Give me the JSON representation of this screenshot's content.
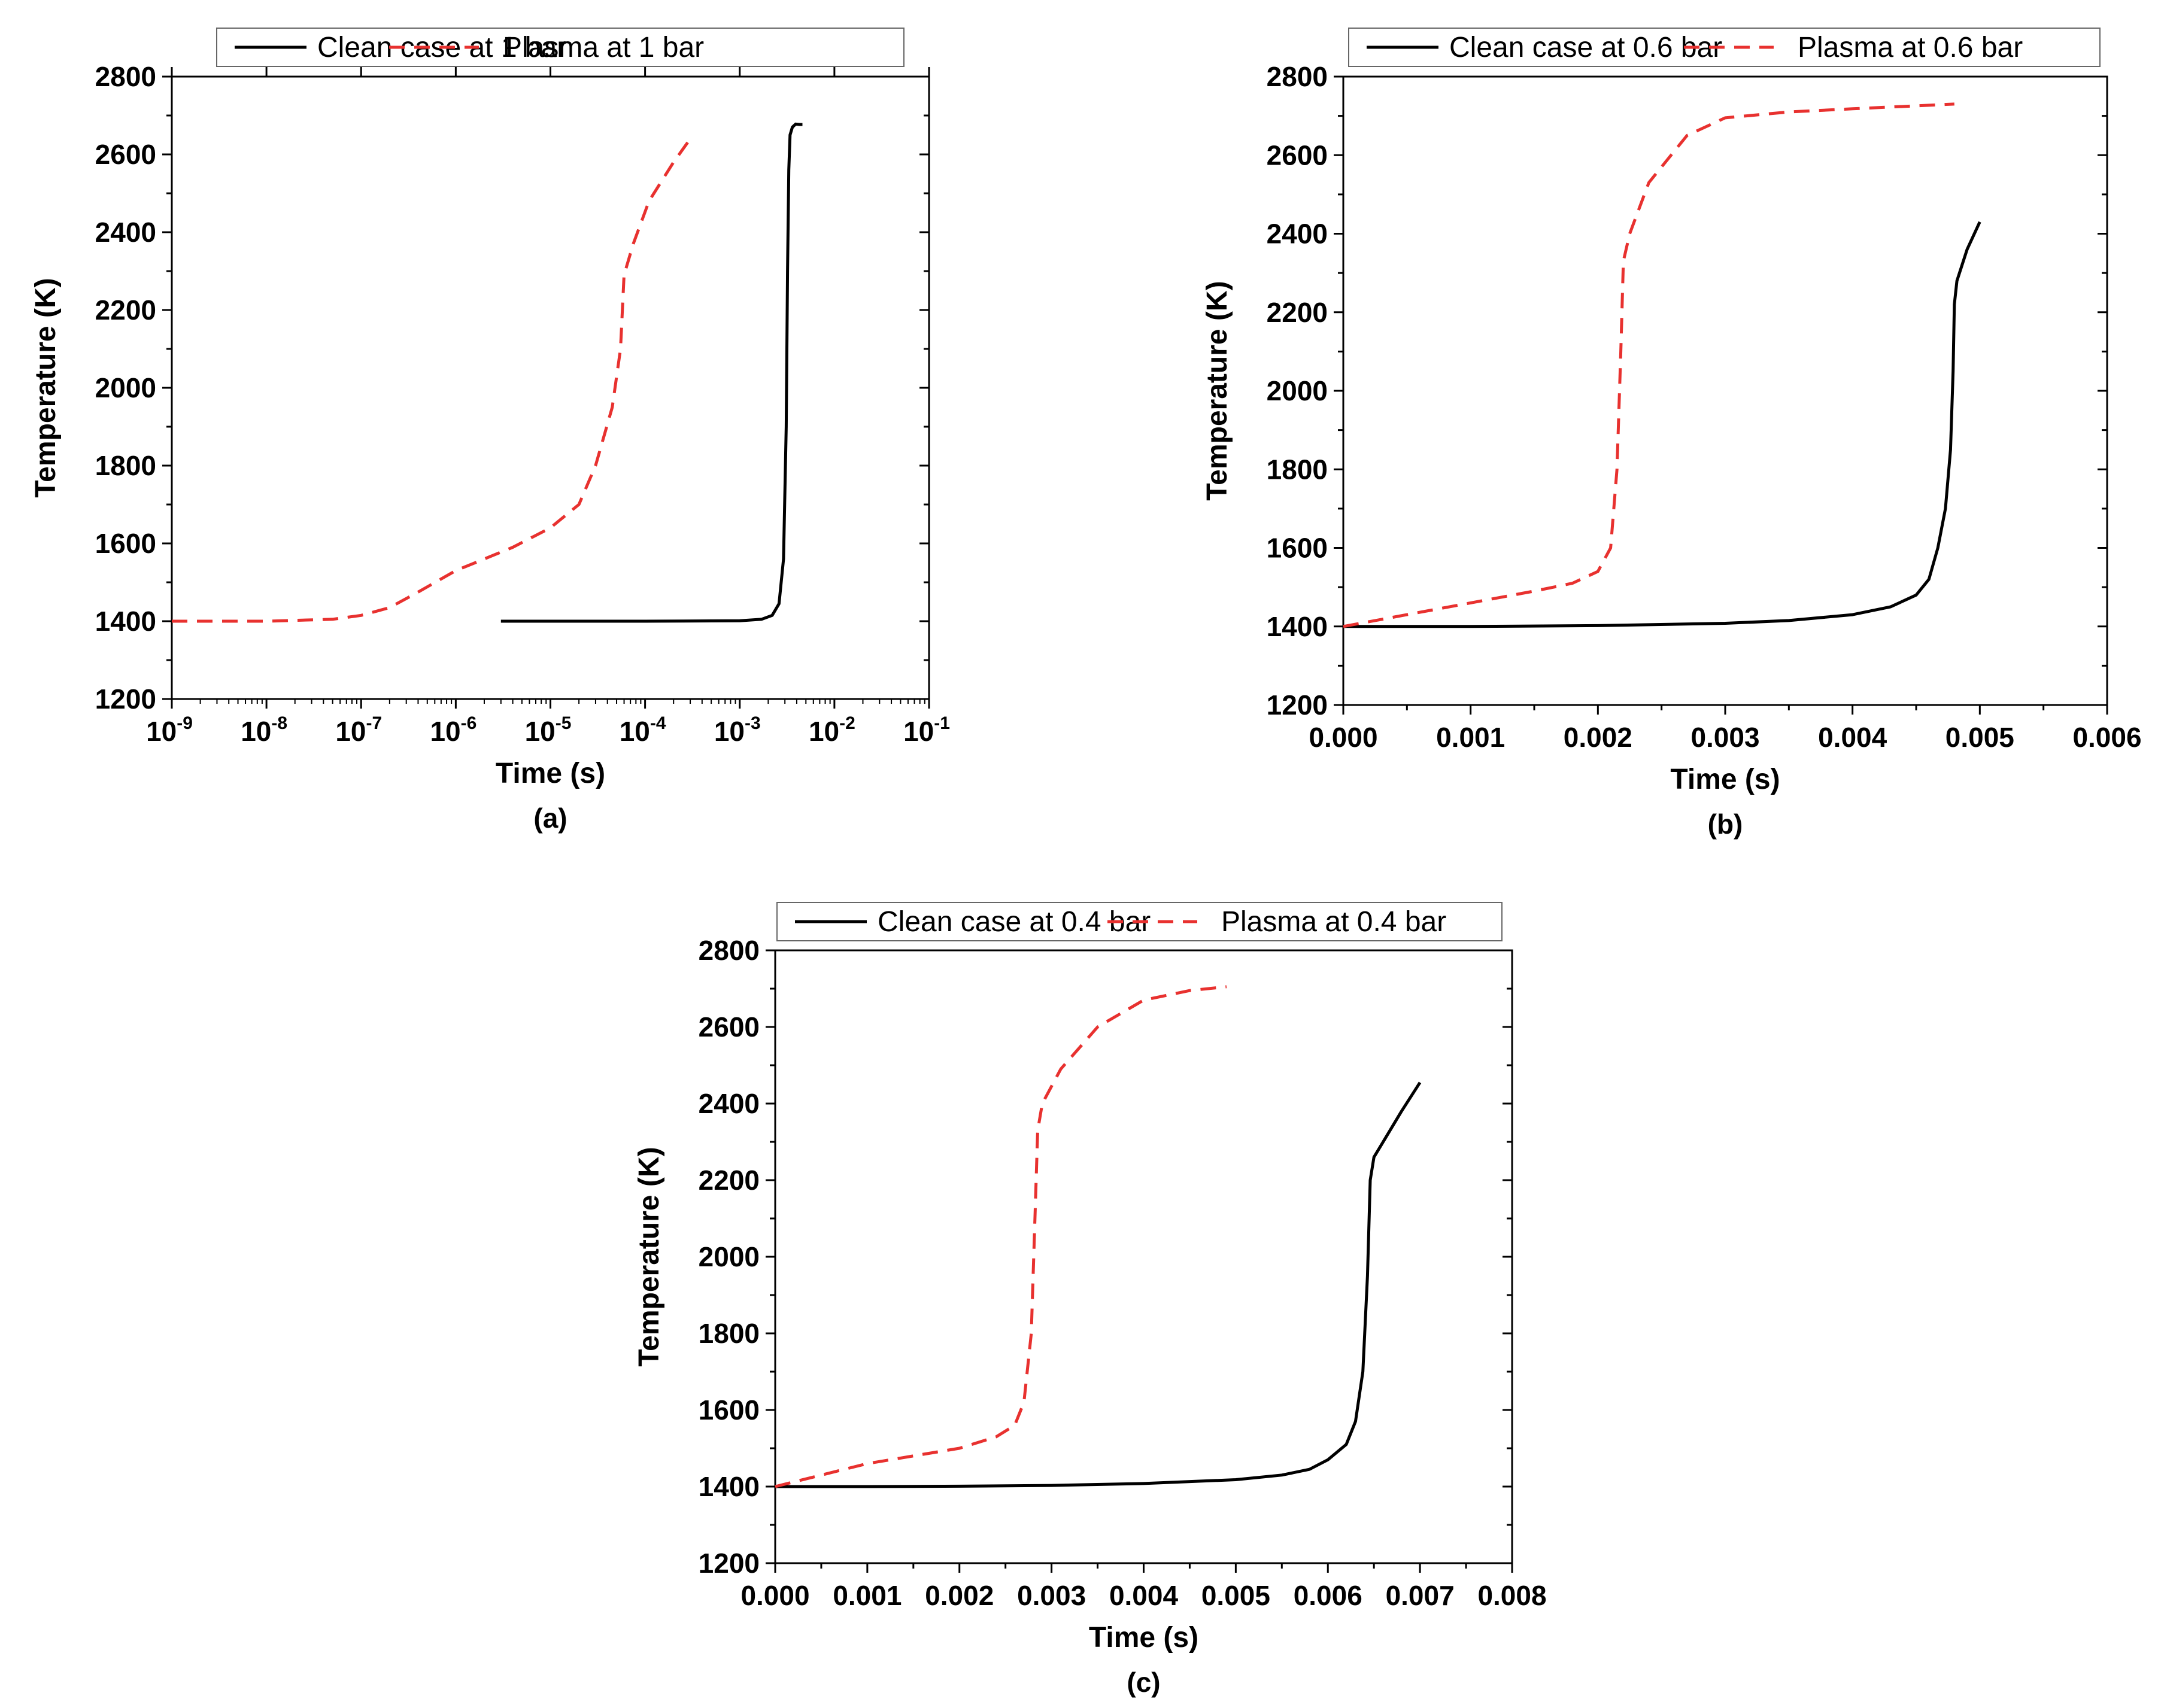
{
  "colors": {
    "clean": "#000000",
    "plasma": "#e8312f",
    "axis": "#000000",
    "background": "#ffffff"
  },
  "chart_data": [
    {
      "type": "line",
      "panel": "(a)",
      "xlabel": "Time (s)",
      "ylabel": "Temperature (K)",
      "xscale": "log",
      "xlim_exp": [
        -9,
        -1
      ],
      "ylim": [
        1200,
        2800
      ],
      "yticks": [
        1200,
        1400,
        1600,
        1800,
        2000,
        2200,
        2400,
        2600,
        2800
      ],
      "xticks_exp": [
        -9,
        -8,
        -7,
        -6,
        -5,
        -4,
        -3,
        -2,
        -1
      ],
      "xtick_base": "10",
      "legend": [
        "Clean case at 1 bar",
        "Plasma at 1 bar"
      ],
      "legend_position": "top",
      "series": [
        {
          "name": "Clean case at 1 bar",
          "style": "solid",
          "x": [
            3e-06,
            0.0001,
            0.001,
            0.0017,
            0.0022,
            0.0026,
            0.0029,
            0.0031,
            0.0032,
            0.0033,
            0.0034,
            0.0036,
            0.0039,
            0.0043,
            0.0046
          ],
          "y": [
            1400,
            1400,
            1401,
            1405,
            1415,
            1445,
            1560,
            1900,
            2300,
            2560,
            2650,
            2670,
            2678,
            2677,
            2677
          ]
        },
        {
          "name": "Plasma at 1 bar",
          "style": "dashed",
          "x": [
            1e-09,
            1e-08,
            5e-08,
            1e-07,
            2e-07,
            4e-07,
            1e-06,
            2e-06,
            4e-06,
            1e-05,
            2e-05,
            3e-05,
            4.5e-05,
            5.5e-05,
            6e-05,
            7.5e-05,
            0.00011,
            0.0002,
            0.0003
          ],
          "y": [
            1400,
            1400,
            1405,
            1415,
            1435,
            1475,
            1530,
            1560,
            1590,
            1640,
            1700,
            1800,
            1950,
            2100,
            2290,
            2370,
            2480,
            2580,
            2640
          ]
        }
      ]
    },
    {
      "type": "line",
      "panel": "(b)",
      "xlabel": "Time (s)",
      "ylabel": "Temperature (K)",
      "xlim": [
        0,
        0.006
      ],
      "ylim": [
        1200,
        2800
      ],
      "yticks": [
        1200,
        1400,
        1600,
        1800,
        2000,
        2200,
        2400,
        2600,
        2800
      ],
      "xticks": [
        0,
        0.001,
        0.002,
        0.003,
        0.004,
        0.005,
        0.006
      ],
      "xtick_labels": [
        "0.000",
        "0.001",
        "0.002",
        "0.003",
        "0.004",
        "0.005",
        "0.006"
      ],
      "legend": [
        "Clean case at 0.6 bar",
        "Plasma at 0.6 bar"
      ],
      "legend_position": "top",
      "series": [
        {
          "name": "Clean case at 0.6 bar",
          "style": "solid",
          "x": [
            0,
            0.001,
            0.002,
            0.003,
            0.0035,
            0.004,
            0.0043,
            0.0045,
            0.0046,
            0.00467,
            0.00473,
            0.00477,
            0.00479,
            0.0048,
            0.00482,
            0.0049,
            0.005
          ],
          "y": [
            1400,
            1400,
            1402,
            1408,
            1415,
            1430,
            1450,
            1480,
            1520,
            1600,
            1700,
            1850,
            2050,
            2220,
            2280,
            2360,
            2430
          ]
        },
        {
          "name": "Plasma at 0.6 bar",
          "style": "dashed",
          "x": [
            0,
            0.0005,
            0.001,
            0.0015,
            0.0018,
            0.002,
            0.0021,
            0.00215,
            0.00218,
            0.0022,
            0.00225,
            0.0024,
            0.0027,
            0.003,
            0.0035,
            0.004,
            0.0048
          ],
          "y": [
            1400,
            1430,
            1460,
            1490,
            1510,
            1540,
            1600,
            1800,
            2100,
            2330,
            2400,
            2530,
            2650,
            2695,
            2710,
            2718,
            2730
          ]
        }
      ]
    },
    {
      "type": "line",
      "panel": "(c)",
      "xlabel": "Time (s)",
      "ylabel": "Temperature (K)",
      "xlim": [
        0,
        0.008
      ],
      "ylim": [
        1200,
        2800
      ],
      "yticks": [
        1200,
        1400,
        1600,
        1800,
        2000,
        2200,
        2400,
        2600,
        2800
      ],
      "xticks": [
        0,
        0.001,
        0.002,
        0.003,
        0.004,
        0.005,
        0.006,
        0.007,
        0.008
      ],
      "xtick_labels": [
        "0.000",
        "0.001",
        "0.002",
        "0.003",
        "0.004",
        "0.005",
        "0.006",
        "0.007",
        "0.008"
      ],
      "legend": [
        "Clean case at 0.4 bar",
        "Plasma at 0.4 bar"
      ],
      "legend_position": "top",
      "series": [
        {
          "name": "Clean case at 0.4 bar",
          "style": "solid",
          "x": [
            0,
            0.001,
            0.002,
            0.003,
            0.004,
            0.005,
            0.0055,
            0.0058,
            0.006,
            0.0062,
            0.0063,
            0.00638,
            0.00643,
            0.00646,
            0.0065,
            0.0066,
            0.0068,
            0.007
          ],
          "y": [
            1400,
            1400,
            1401,
            1403,
            1408,
            1418,
            1430,
            1445,
            1470,
            1510,
            1570,
            1700,
            1950,
            2200,
            2260,
            2300,
            2380,
            2455
          ]
        },
        {
          "name": "Plasma at 0.4 bar",
          "style": "dashed",
          "x": [
            0,
            0.0005,
            0.001,
            0.0015,
            0.002,
            0.0024,
            0.0026,
            0.0027,
            0.00278,
            0.00282,
            0.00285,
            0.0029,
            0.0031,
            0.0035,
            0.004,
            0.0045,
            0.0049
          ],
          "y": [
            1400,
            1430,
            1460,
            1480,
            1500,
            1530,
            1560,
            1620,
            1800,
            2100,
            2330,
            2400,
            2490,
            2600,
            2670,
            2695,
            2705
          ]
        }
      ]
    }
  ]
}
